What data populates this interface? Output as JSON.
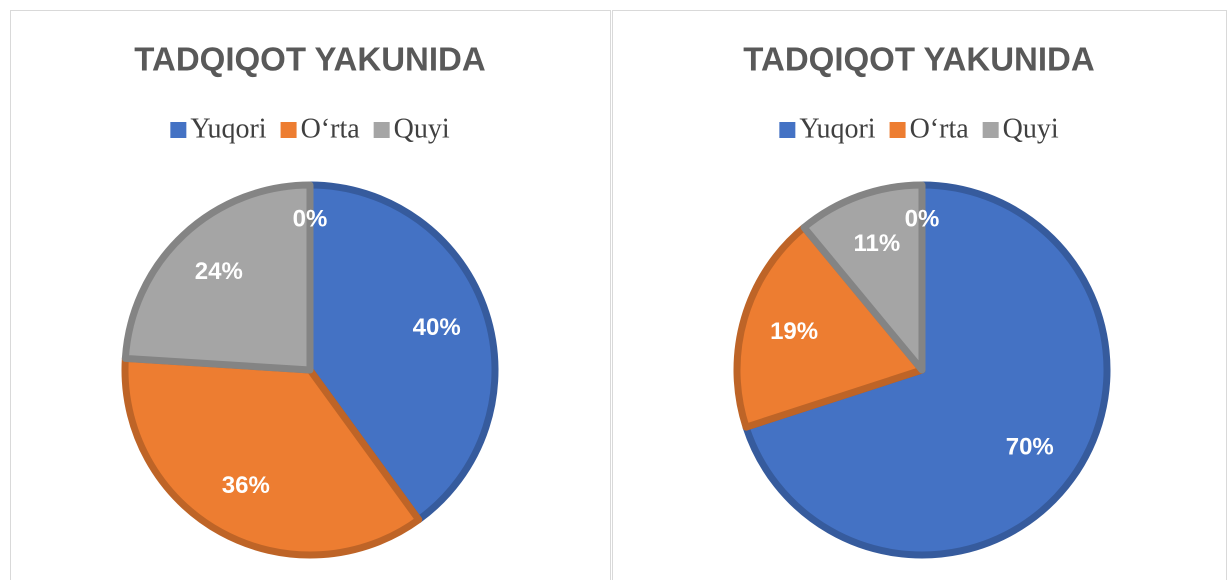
{
  "chart_data": [
    {
      "type": "pie",
      "title": "TADQIQOT YAKUNIDA",
      "categories": [
        "Yuqori",
        "O‘rta",
        "Quyi",
        null
      ],
      "values": [
        40,
        36,
        24,
        0
      ],
      "value_labels": [
        "40%",
        "36%",
        "24%",
        "0%"
      ],
      "colors": [
        "#4472c4",
        "#ed7d31",
        "#a5a5a5",
        "#ffc000"
      ]
    },
    {
      "type": "pie",
      "title": "TADQIQOT YAKUNIDA",
      "categories": [
        "Yuqori",
        "O‘rta",
        "Quyi",
        null
      ],
      "values": [
        70,
        19,
        11,
        0
      ],
      "value_labels": [
        "70%",
        "19%",
        "11%",
        "0%"
      ],
      "colors": [
        "#4472c4",
        "#ed7d31",
        "#a5a5a5",
        "#ffc000"
      ]
    }
  ]
}
